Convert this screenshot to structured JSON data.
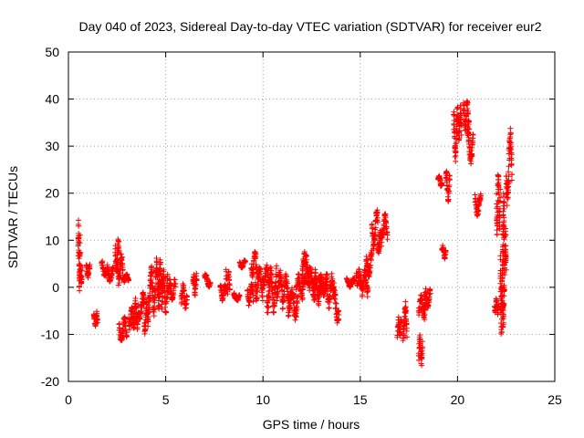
{
  "chart_data": {
    "type": "scatter",
    "title": "Day 040 of 2023, Sidereal Day-to-day VTEC variation (SDTVAR) for receiver eur2",
    "xlabel": "GPS time / hours",
    "ylabel": "SDTVAR / TECUs",
    "xlim": [
      0,
      25
    ],
    "ylim": [
      -20,
      50
    ],
    "xticks": [
      "0",
      "5",
      "10",
      "15",
      "20",
      "25"
    ],
    "yticks": [
      "-20",
      "-10",
      "0",
      "10",
      "20",
      "30",
      "40",
      "50"
    ],
    "grid": true,
    "marker": "+",
    "color": "#ff0000",
    "segments": [
      [
        0.5,
        0.6,
        -1,
        15
      ],
      [
        0.6,
        0.7,
        0,
        5
      ],
      [
        0.9,
        1.1,
        2,
        5
      ],
      [
        1.3,
        1.5,
        -9,
        -5
      ],
      [
        1.7,
        2.0,
        2,
        6
      ],
      [
        2.0,
        2.3,
        1,
        5
      ],
      [
        2.4,
        2.6,
        3,
        11
      ],
      [
        2.5,
        2.8,
        0,
        8
      ],
      [
        2.6,
        3.0,
        -12,
        -6
      ],
      [
        2.8,
        3.1,
        1,
        3
      ],
      [
        3.1,
        3.4,
        -9,
        -4
      ],
      [
        3.3,
        3.6,
        -9,
        -2
      ],
      [
        3.6,
        3.9,
        -7,
        -1
      ],
      [
        3.9,
        4.1,
        -10,
        -3
      ],
      [
        4.1,
        4.4,
        -7,
        5
      ],
      [
        4.4,
        4.7,
        -5,
        7
      ],
      [
        4.6,
        4.9,
        -2,
        6
      ],
      [
        4.8,
        5.1,
        -6,
        3
      ],
      [
        5.1,
        5.5,
        -3,
        2
      ],
      [
        5.8,
        6.1,
        -5,
        1
      ],
      [
        6.4,
        6.6,
        -2,
        3
      ],
      [
        7.0,
        7.3,
        0,
        3
      ],
      [
        7.8,
        8.1,
        -3,
        1
      ],
      [
        8.1,
        8.3,
        -2,
        4
      ],
      [
        8.5,
        8.8,
        -3,
        -1
      ],
      [
        8.8,
        9.1,
        4,
        6
      ],
      [
        9.2,
        9.5,
        -4,
        1
      ],
      [
        9.4,
        9.7,
        2,
        8
      ],
      [
        9.6,
        10.0,
        -3,
        5
      ],
      [
        10.0,
        10.4,
        0,
        5
      ],
      [
        10.2,
        10.7,
        -6,
        5
      ],
      [
        10.7,
        11.0,
        -3,
        4
      ],
      [
        11.0,
        11.4,
        -5,
        3
      ],
      [
        11.3,
        11.8,
        -7,
        0
      ],
      [
        11.7,
        12.2,
        -3,
        3
      ],
      [
        12.0,
        12.4,
        -1,
        8
      ],
      [
        12.3,
        12.7,
        -3,
        5
      ],
      [
        12.6,
        13.0,
        -4,
        4
      ],
      [
        12.9,
        13.3,
        -2,
        3
      ],
      [
        13.2,
        13.6,
        -5,
        3
      ],
      [
        13.6,
        13.9,
        -8,
        1
      ],
      [
        14.3,
        14.7,
        0,
        2
      ],
      [
        14.8,
        15.0,
        0,
        4
      ],
      [
        15.0,
        15.4,
        -2,
        4
      ],
      [
        15.3,
        15.6,
        2,
        9
      ],
      [
        15.6,
        15.9,
        8,
        17
      ],
      [
        15.9,
        16.1,
        7,
        13
      ],
      [
        16.1,
        16.4,
        10,
        16
      ],
      [
        16.9,
        17.1,
        -11,
        -6
      ],
      [
        17.2,
        17.4,
        -12,
        -3
      ],
      [
        18.0,
        18.2,
        -17,
        -10
      ],
      [
        18.0,
        18.4,
        -7,
        -1
      ],
      [
        18.3,
        18.6,
        -5,
        0
      ],
      [
        19.0,
        19.2,
        21,
        24
      ],
      [
        19.2,
        19.4,
        6,
        9
      ],
      [
        19.4,
        19.6,
        18,
        25
      ],
      [
        19.8,
        20.0,
        26,
        38
      ],
      [
        20.0,
        20.2,
        30,
        39
      ],
      [
        20.3,
        20.6,
        33,
        40
      ],
      [
        20.5,
        20.8,
        26,
        36
      ],
      [
        20.9,
        21.2,
        15,
        20
      ],
      [
        21.9,
        22.1,
        -6,
        -2
      ],
      [
        22.0,
        22.2,
        11,
        26
      ],
      [
        22.2,
        22.4,
        -11,
        21
      ],
      [
        22.3,
        22.5,
        -9,
        13
      ],
      [
        22.5,
        22.8,
        17,
        34
      ]
    ]
  }
}
